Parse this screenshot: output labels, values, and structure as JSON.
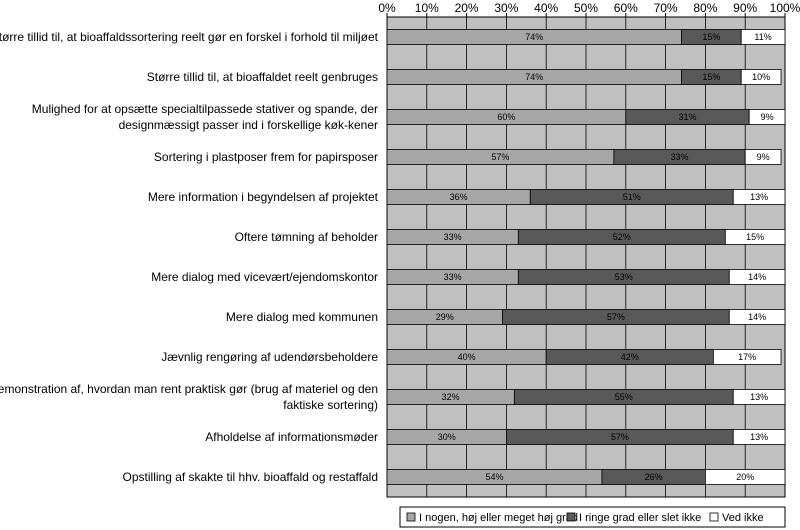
{
  "chart_data": {
    "type": "bar",
    "orientation": "horizontal",
    "stacked": true,
    "percent_stacked": true,
    "categories": [
      [
        "Større tillid til, at bioaffaldssortering reelt gør en forskel i forhold til miljøet"
      ],
      [
        "Større tillid til, at bioaffaldet reelt genbruges"
      ],
      [
        "Mulighed for at opsætte specialtilpassede stativer og spande, der",
        "designmæssigt passer ind i forskellige køk-kener"
      ],
      [
        "Sortering i plastposer frem for papirsposer"
      ],
      [
        "Mere information i begyndelsen af projektet"
      ],
      [
        "Oftere tømning af beholder"
      ],
      [
        "Mere dialog med vicevært/ejendomskontor"
      ],
      [
        "Mere dialog med kommunen"
      ],
      [
        "Jævnlig rengøring af udendørsbeholdere"
      ],
      [
        "Demonstration af, hvordan man rent praktisk gør (brug af materiel og den",
        "faktiske sortering)"
      ],
      [
        "Afholdelse af informationsmøder"
      ],
      [
        "Opstilling af skakte til hhv. bioaffald og restaffald"
      ]
    ],
    "series": [
      {
        "name": "I nogen, høj eller meget høj grad",
        "color": "#a6a6a6",
        "values": [
          74,
          74,
          60,
          57,
          36,
          33,
          33,
          29,
          40,
          32,
          30,
          54
        ]
      },
      {
        "name": "I ringe grad eller slet ikke",
        "color": "#595959",
        "values": [
          15,
          15,
          31,
          33,
          51,
          52,
          53,
          57,
          42,
          55,
          57,
          26
        ]
      },
      {
        "name": "Ved ikke",
        "color": "#ffffff",
        "values": [
          11,
          10,
          9,
          9,
          13,
          15,
          14,
          14,
          17,
          13,
          13,
          20
        ]
      }
    ],
    "value_labels": [
      [
        "74%",
        "15%",
        "11%"
      ],
      [
        "74%",
        "15%",
        "10%"
      ],
      [
        "60%",
        "31%",
        "9%"
      ],
      [
        "57%",
        "33%",
        "9%"
      ],
      [
        "36%",
        "51%",
        "13%"
      ],
      [
        "33%",
        "52%",
        "15%"
      ],
      [
        "33%",
        "53%",
        "14%"
      ],
      [
        "29%",
        "57%",
        "14%"
      ],
      [
        "40%",
        "42%",
        "17%"
      ],
      [
        "32%",
        "55%",
        "13%"
      ],
      [
        "30%",
        "57%",
        "13%"
      ],
      [
        "54%",
        "26%",
        "20%"
      ]
    ],
    "x_ticks": [
      "0%",
      "10%",
      "20%",
      "30%",
      "40%",
      "50%",
      "60%",
      "70%",
      "80%",
      "90%",
      "100%"
    ],
    "xlim": [
      0,
      100
    ],
    "x_axis_position": "top",
    "legend_position": "bottom-right",
    "plot_background": "#c0c0c0",
    "grid": true
  }
}
